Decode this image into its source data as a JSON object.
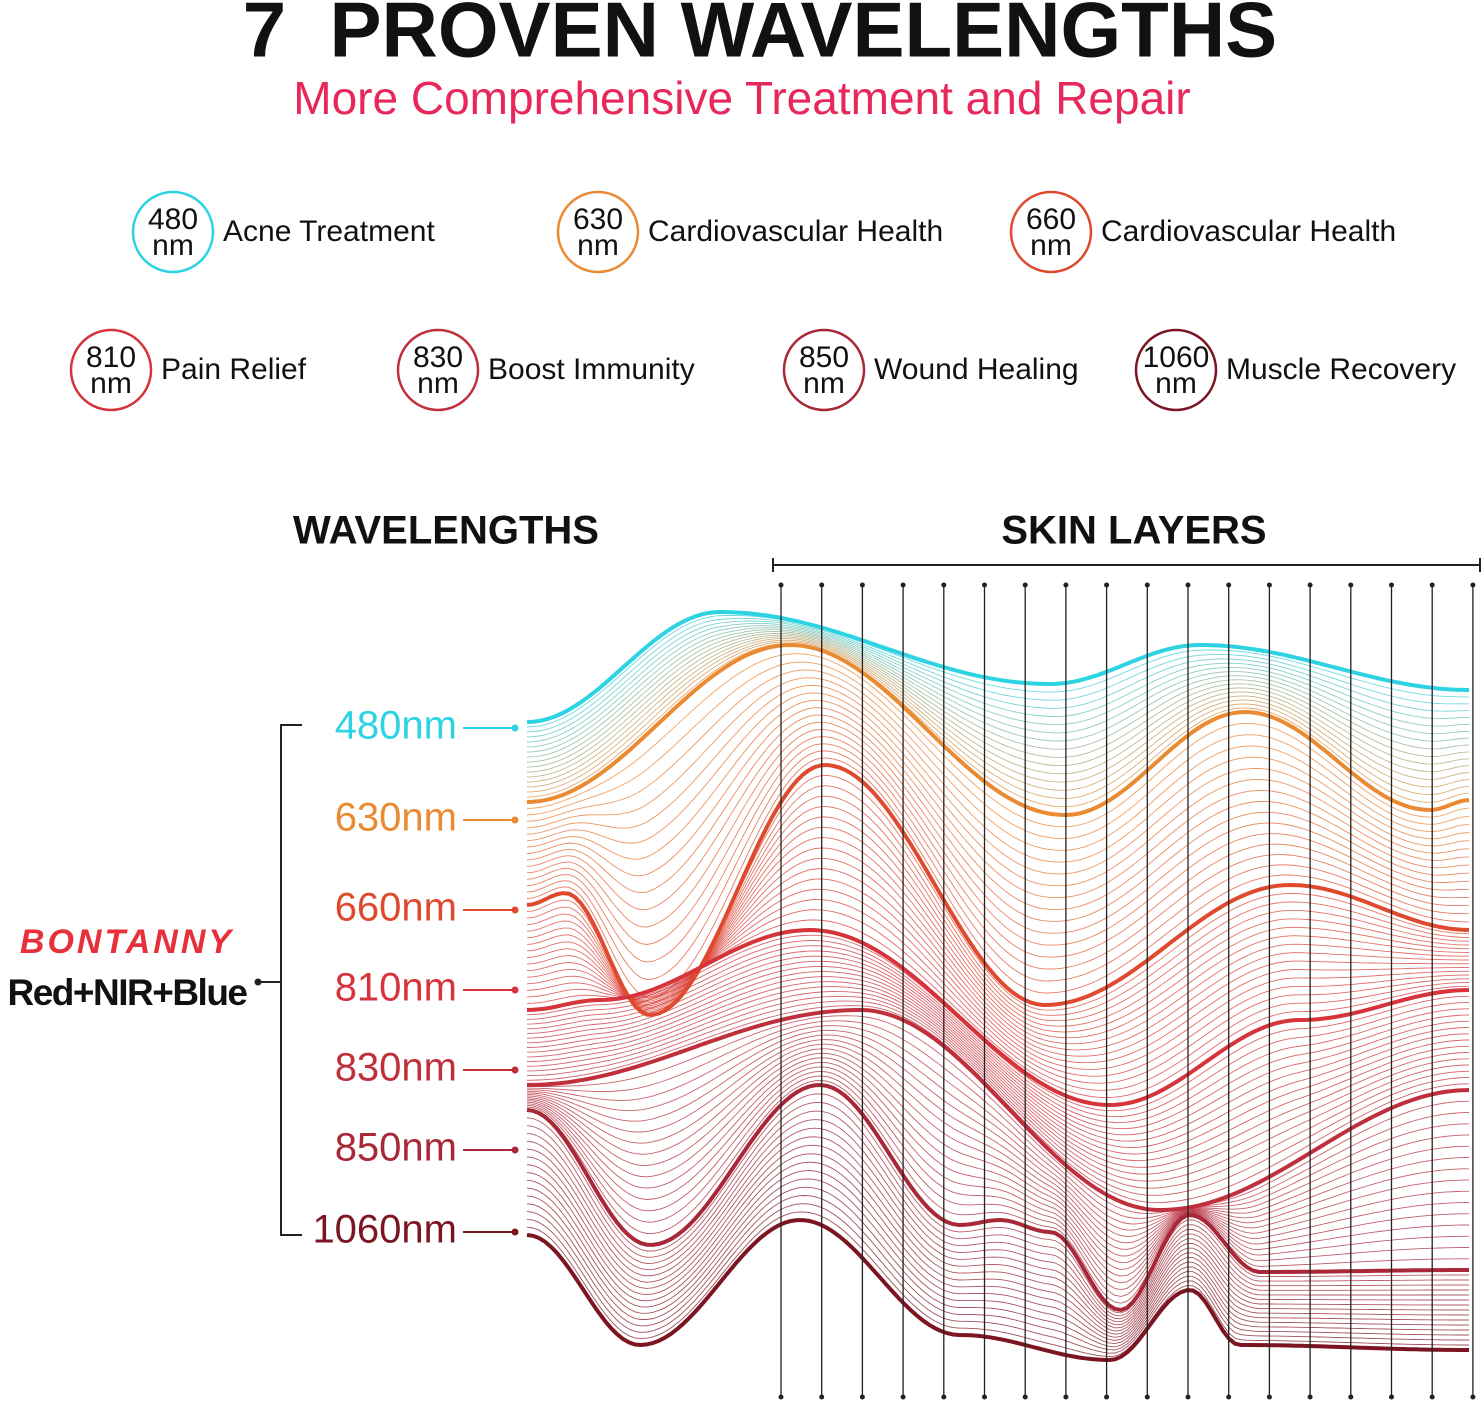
{
  "title": "7  PROVEN WAVELENGTHS",
  "subtitle": "More Comprehensive Treatment and Repair",
  "benefits": [
    {
      "wavelength": "480",
      "unit": "nm",
      "label": "Acne Treatment",
      "color": "#2dd3e3"
    },
    {
      "wavelength": "630",
      "unit": "nm",
      "label": "Cardiovascular Health",
      "color": "#ea8a32"
    },
    {
      "wavelength": "660",
      "unit": "nm",
      "label": "Cardiovascular Health",
      "color": "#df4a2e"
    },
    {
      "wavelength": "810",
      "unit": "nm",
      "label": "Pain Relief",
      "color": "#d6333a"
    },
    {
      "wavelength": "830",
      "unit": "nm",
      "label": "Boost Immunity",
      "color": "#c02f3c"
    },
    {
      "wavelength": "850",
      "unit": "nm",
      "label": "Wound Healing",
      "color": "#a82838"
    },
    {
      "wavelength": "1060",
      "unit": "nm",
      "label": "Muscle Recovery",
      "color": "#7c1522"
    }
  ],
  "diagram": {
    "left_heading": "WAVELENGTHS",
    "right_heading": "SKIN LAYERS",
    "brand": "BONTANNY",
    "brand_color": "#e8303a",
    "product": "Red+NIR+Blue",
    "wavelengths": [
      {
        "label": "480nm",
        "color": "#2dd3e3"
      },
      {
        "label": "630nm",
        "color": "#ea8a32"
      },
      {
        "label": "660nm",
        "color": "#df4a2e"
      },
      {
        "label": "810nm",
        "color": "#d6333a"
      },
      {
        "label": "830nm",
        "color": "#c02f3c"
      },
      {
        "label": "850nm",
        "color": "#a82838"
      },
      {
        "label": "1060nm",
        "color": "#7c1522"
      }
    ]
  }
}
